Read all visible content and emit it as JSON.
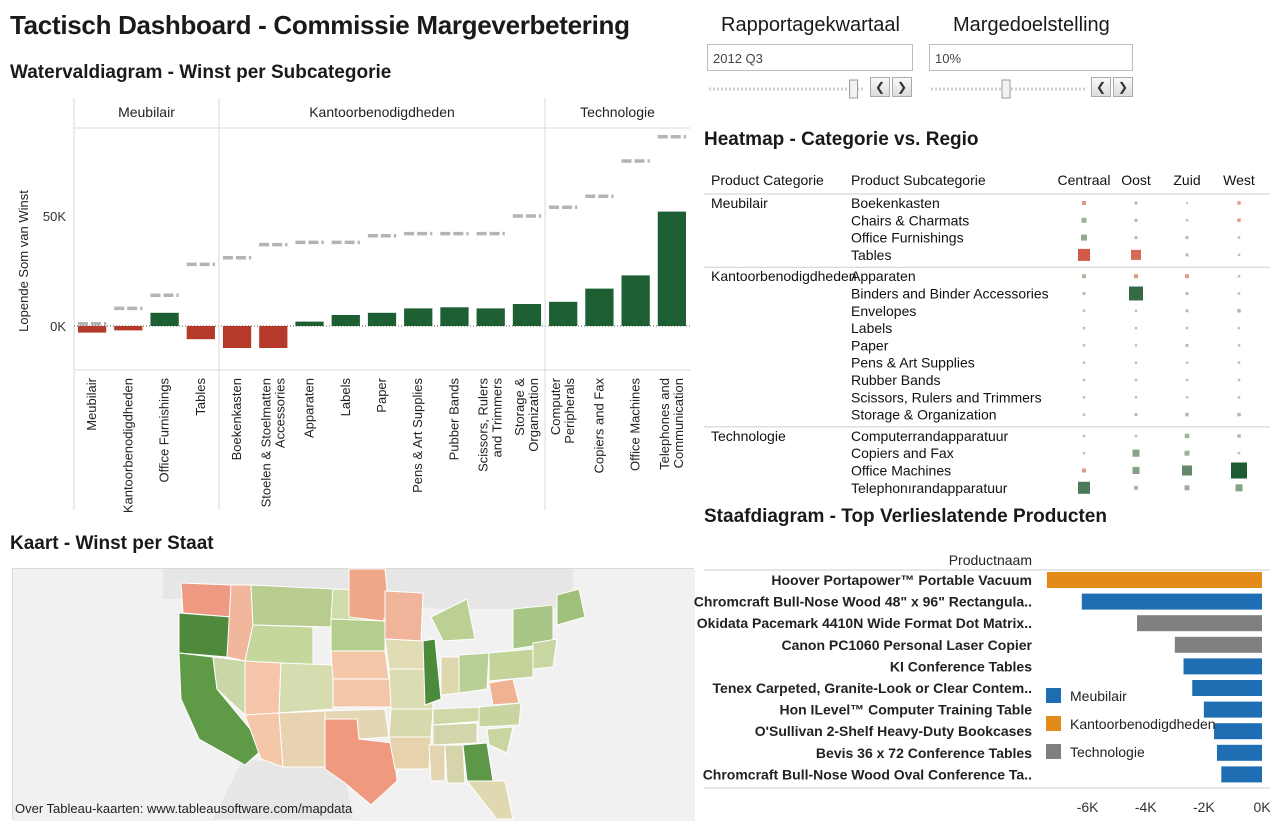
{
  "header": {
    "title": "Tactisch Dashboard - Commissie Margeverbetering"
  },
  "controls": {
    "quarter": {
      "label": "Rapportagekwartaal",
      "value": "2012 Q3",
      "level": 0.95
    },
    "target": {
      "label": "Margedoelstelling",
      "value": "10%",
      "level": 0.48
    }
  },
  "waterfall": {
    "title": "Watervaldiagram - Winst per Subcategorie"
  },
  "heatmap": {
    "title": "Heatmap - Categorie vs. Regio"
  },
  "map": {
    "title": "Kaart - Winst per Staat",
    "footer": "Over Tableau-kaarten: www.tableausoftware.com/mapdata"
  },
  "barchart": {
    "title": "Staafdiagram - Top Verlieslatende Producten"
  },
  "colors": {
    "positive": "#1e5e33",
    "negative": "#b53a2a",
    "meubilair": "#1f6db3",
    "kantoor": "#e38b1a",
    "technologie": "#808080"
  },
  "chart_data": [
    {
      "type": "bar",
      "name": "waterfall",
      "ylabel": "Lopende Som van Winst",
      "yticks": [
        {
          "label": "0K",
          "value": 0
        },
        {
          "label": "50K",
          "value": 50000
        }
      ],
      "ylim": [
        -20000,
        90000
      ],
      "groups": [
        {
          "name": "Meubilair",
          "items": [
            {
              "label": [
                "Meubilair"
              ],
              "start": 1000,
              "end": -3000
            },
            {
              "label": [
                "Kantoorbenodigdheden"
              ],
              "start": 8000,
              "end": -2000
            },
            {
              "label": [
                "Office Furnishings"
              ],
              "start": 14000,
              "end": 6000
            },
            {
              "label": [
                "Tables"
              ],
              "start": 28000,
              "end": -6000
            }
          ]
        },
        {
          "name": "Kantoorbenodigdheden",
          "items": [
            {
              "label": [
                "Boekenkasten"
              ],
              "start": 31000,
              "end": -10000
            },
            {
              "label": [
                "Stoelen & Stoelmatten",
                "Accessories"
              ],
              "start": 37000,
              "end": -10000
            },
            {
              "label": [
                "Apparaten"
              ],
              "start": 38000,
              "end": 2000
            },
            {
              "label": [
                "Labels"
              ],
              "start": 38000,
              "end": 5000
            },
            {
              "label": [
                "Paper"
              ],
              "start": 41000,
              "end": 6000
            },
            {
              "label": [
                "Pens & Art Supplies"
              ],
              "start": 42000,
              "end": 8000
            },
            {
              "label": [
                "Pubber Bands"
              ],
              "start": 42000,
              "end": 8500
            },
            {
              "label": [
                "Scissors, Rulers",
                "and Trimmers"
              ],
              "start": 42000,
              "end": 8000
            },
            {
              "label": [
                "Storage &",
                "Organization"
              ],
              "start": 50000,
              "end": 10000
            }
          ]
        },
        {
          "name": "Technologie",
          "items": [
            {
              "label": [
                "Computer",
                "Peripherals"
              ],
              "start": 54000,
              "end": 11000
            },
            {
              "label": [
                "Copiers and Fax"
              ],
              "start": 59000,
              "end": 17000
            },
            {
              "label": [
                "Office Machines"
              ],
              "start": 75000,
              "end": 23000
            },
            {
              "label": [
                "Telephones and",
                "Communication"
              ],
              "start": 86000,
              "end": 52000
            }
          ]
        }
      ]
    },
    {
      "type": "heatmap",
      "name": "heatmap",
      "row_headers": [
        "Product Categorie",
        "Product Subcategorie"
      ],
      "columns": [
        "Centraal",
        "Oost",
        "Zuid",
        "West"
      ],
      "groups": [
        {
          "category": "Meubilair",
          "rows": [
            {
              "sub": "Boekenkasten",
              "values": [
                -2,
                1,
                0,
                -1.5
              ]
            },
            {
              "sub": "Chairs & Charmats",
              "values": [
                3,
                1,
                0.5,
                -1.5
              ]
            },
            {
              "sub": "Office Furnishings",
              "values": [
                4,
                1,
                1,
                0.5
              ]
            },
            {
              "sub": "Tables",
              "values": [
                -10,
                -8,
                1,
                0.5
              ]
            }
          ]
        },
        {
          "category": "Kantoorbenodigdheden",
          "rows": [
            {
              "sub": "Apparaten",
              "values": [
                2,
                -2,
                -2,
                0.5
              ]
            },
            {
              "sub": "Binders and Binder Accessories",
              "values": [
                1,
                12,
                1,
                0.5
              ]
            },
            {
              "sub": "Envelopes",
              "values": [
                0.5,
                0.5,
                1,
                1.5
              ]
            },
            {
              "sub": "Labels",
              "values": [
                0.5,
                0.5,
                0.5,
                0.5
              ]
            },
            {
              "sub": "Paper",
              "values": [
                0.5,
                0.5,
                1,
                0.5
              ]
            },
            {
              "sub": "Pens & Art Supplies",
              "values": [
                0.5,
                0.5,
                0.5,
                0.5
              ]
            },
            {
              "sub": "Rubber Bands",
              "values": [
                0.5,
                0.5,
                0.5,
                0.5
              ]
            },
            {
              "sub": "Scissors, Rulers and Trimmers",
              "values": [
                0.5,
                0.5,
                0.5,
                0.5
              ]
            },
            {
              "sub": "Storage & Organization",
              "values": [
                0.5,
                1,
                1.5,
                1.5
              ]
            }
          ]
        },
        {
          "category": "Technologie",
          "rows": [
            {
              "sub": "Computerrandapparatuur",
              "values": [
                0.5,
                0.5,
                2.5,
                1.5
              ]
            },
            {
              "sub": "Copiers and Fax",
              "values": [
                0.5,
                5,
                3,
                0.5
              ]
            },
            {
              "sub": "Office Machines",
              "values": [
                -2,
                5,
                8,
                14
              ]
            },
            {
              "sub": "Telephonırandapparatuur",
              "values": [
                10,
                2,
                3,
                5
              ]
            }
          ]
        }
      ]
    },
    {
      "type": "bar",
      "name": "top-loss-products",
      "orientation": "horizontal",
      "header": "Productnaam",
      "xlim": [
        -7500,
        0
      ],
      "xticks": [
        {
          "label": "-6K",
          "value": -6000
        },
        {
          "label": "-4K",
          "value": -4000
        },
        {
          "label": "-2K",
          "value": -2000
        },
        {
          "label": "0K",
          "value": 0
        }
      ],
      "legend_position": "inside-left",
      "legend": [
        {
          "name": "Meubilair",
          "color": "#1f6db3"
        },
        {
          "name": "Kantoorbenodigdheden",
          "color": "#e38b1a"
        },
        {
          "name": "Technologie",
          "color": "#808080"
        }
      ],
      "bars": [
        {
          "label": "Hoover Portapower™ Portable Vacuum",
          "value": -7400,
          "category": "Kantoorbenodigdheden"
        },
        {
          "label": "Chromcraft Bull-Nose Wood 48\" x 96\" Rectangula..",
          "value": -6200,
          "category": "Meubilair"
        },
        {
          "label": "Okidata Pacemark 4410N Wide Format Dot Matrix..",
          "value": -4300,
          "category": "Technologie"
        },
        {
          "label": "Canon PC1060 Personal Laser Copier",
          "value": -3000,
          "category": "Technologie"
        },
        {
          "label": "KI Conference Tables",
          "value": -2700,
          "category": "Meubilair"
        },
        {
          "label": "Tenex Carpeted, Granite-Look or Clear Contem..",
          "value": -2400,
          "category": "Meubilair"
        },
        {
          "label": "Hon ILevel™ Computer Training Table",
          "value": -2000,
          "category": "Meubilair"
        },
        {
          "label": "O'Sullivan 2-Shelf Heavy-Duty Bookcases",
          "value": -1650,
          "category": "Meubilair"
        },
        {
          "label": "Bevis 36 x 72 Conference Tables",
          "value": -1550,
          "category": "Meubilair"
        },
        {
          "label": "Chromcraft Bull-Nose Wood Oval Conference Ta..",
          "value": -1400,
          "category": "Meubilair"
        }
      ]
    }
  ]
}
